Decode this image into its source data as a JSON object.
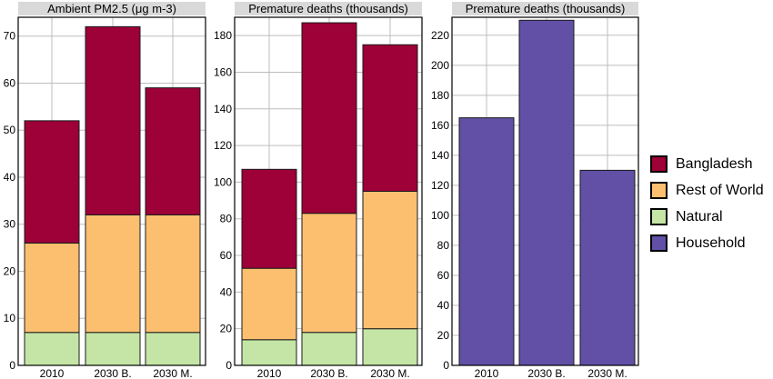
{
  "chart_data": [
    {
      "type": "bar",
      "stacked": true,
      "title": "Ambient PM2.5 (μg m-3)",
      "categories": [
        "2010",
        "2030 B.",
        "2030 M."
      ],
      "ylim": [
        0,
        74
      ],
      "yticks": [
        0,
        10,
        20,
        30,
        40,
        50,
        60,
        70
      ],
      "grid": true,
      "series": [
        {
          "name": "Natural",
          "color": "#c4e5a5",
          "values": [
            7,
            7,
            7
          ]
        },
        {
          "name": "Rest of World",
          "color": "#fbbf6f",
          "values": [
            19,
            25,
            25
          ]
        },
        {
          "name": "Bangladesh",
          "color": "#9e0038",
          "values": [
            26,
            40,
            27
          ]
        }
      ]
    },
    {
      "type": "bar",
      "stacked": true,
      "title": "Premature deaths (thousands)",
      "categories": [
        "2010",
        "2030 B.",
        "2030 M."
      ],
      "ylim": [
        0,
        190
      ],
      "yticks": [
        0,
        20,
        40,
        60,
        80,
        100,
        120,
        140,
        160,
        180
      ],
      "grid": true,
      "series": [
        {
          "name": "Natural",
          "color": "#c4e5a5",
          "values": [
            14,
            18,
            20
          ]
        },
        {
          "name": "Rest of World",
          "color": "#fbbf6f",
          "values": [
            39,
            65,
            75
          ]
        },
        {
          "name": "Bangladesh",
          "color": "#9e0038",
          "values": [
            54,
            104,
            80
          ]
        }
      ]
    },
    {
      "type": "bar",
      "stacked": false,
      "title": "Premature deaths (thousands)",
      "categories": [
        "2010",
        "2030 B.",
        "2030 M."
      ],
      "ylim": [
        0,
        232
      ],
      "yticks": [
        0,
        20,
        40,
        60,
        80,
        100,
        120,
        140,
        160,
        180,
        200,
        220
      ],
      "grid": true,
      "series": [
        {
          "name": "Household",
          "color": "#6150a6",
          "values": [
            165,
            230,
            130
          ]
        }
      ]
    }
  ],
  "legend": {
    "placement": "right",
    "items": [
      {
        "label": "Bangladesh",
        "color": "#9e0038"
      },
      {
        "label": "Rest of World",
        "color": "#fbbf6f"
      },
      {
        "label": "Natural",
        "color": "#c4e5a5"
      },
      {
        "label": "Household",
        "color": "#6150a6"
      }
    ]
  }
}
